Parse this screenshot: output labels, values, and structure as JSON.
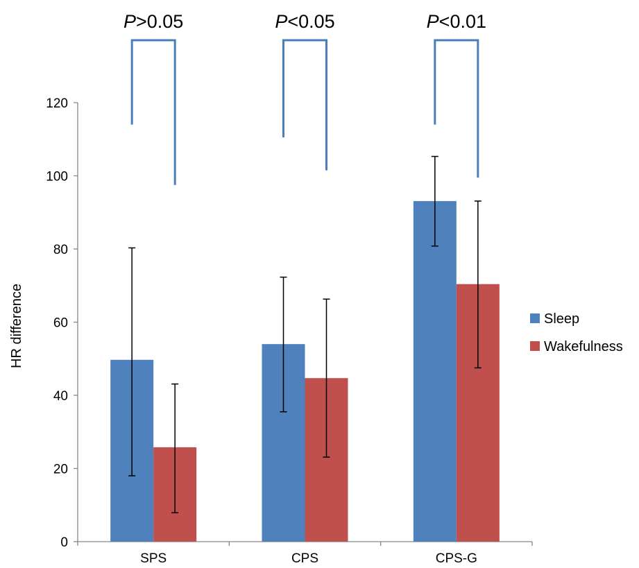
{
  "chart_data": {
    "type": "bar",
    "title": "",
    "xlabel": "",
    "ylabel": "HR difference",
    "ylim": [
      0,
      120
    ],
    "yticks": [
      "0",
      "20",
      "40",
      "60",
      "80",
      "100",
      "120"
    ],
    "categories": [
      "SPS",
      "CPS",
      "CPS-G"
    ],
    "series": [
      {
        "name": "Sleep",
        "color": "#4F81BD",
        "values": [
          49.7,
          54.0,
          93.1
        ],
        "err_low": [
          18.0,
          35.5,
          80.8
        ],
        "err_high": [
          80.3,
          72.3,
          105.3
        ]
      },
      {
        "name": "Wakefulness",
        "color": "#C0504D",
        "values": [
          25.8,
          44.7,
          70.4
        ],
        "err_low": [
          7.9,
          23.1,
          47.5
        ],
        "err_high": [
          43.1,
          66.3,
          93.1
        ]
      }
    ],
    "significance": [
      {
        "category": "SPS",
        "symbol": "P",
        "text": ">0.05",
        "bracket_left_end": 114,
        "bracket_right_end": 97.5
      },
      {
        "category": "CPS",
        "symbol": "P",
        "text": "<0.05",
        "bracket_left_end": 110.5,
        "bracket_right_end": 101.5
      },
      {
        "category": "CPS-G",
        "symbol": "P",
        "text": "<0.01",
        "bracket_left_end": 114,
        "bracket_right_end": 99.5
      }
    ],
    "bracket_color": "#4A7EBB",
    "legend_position": "right",
    "grid": false
  }
}
